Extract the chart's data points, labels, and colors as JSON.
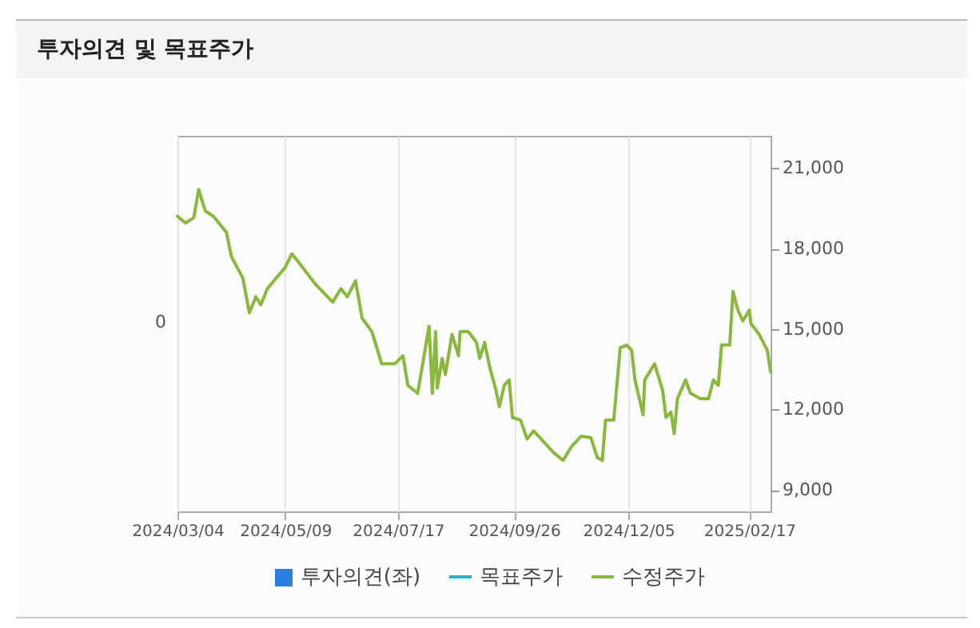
{
  "chart_data": {
    "type": "line",
    "title": "투자의견 및 목표주가",
    "xlim": [
      "2024-03-04",
      "2025-03-02"
    ],
    "xticks": [
      {
        "value": "2024-03-04",
        "label": "2024/03/04"
      },
      {
        "value": "2024-05-09",
        "label": "2024/05/09"
      },
      {
        "value": "2024-07-17",
        "label": "2024/07/17"
      },
      {
        "value": "2024-09-26",
        "label": "2024/09/26"
      },
      {
        "value": "2024-12-05",
        "label": "2024/12/05"
      },
      {
        "value": "2025-02-17",
        "label": "2025/02/17"
      }
    ],
    "annotations": [
      "0"
    ],
    "y2lim": [
      8200,
      22200
    ],
    "y2ticks": [
      {
        "value": 9000,
        "label": "9,000"
      },
      {
        "value": 12000,
        "label": "12,000"
      },
      {
        "value": 15000,
        "label": "15,000"
      },
      {
        "value": 18000,
        "label": "18,000"
      },
      {
        "value": 21000,
        "label": "21,000"
      }
    ],
    "grid": true,
    "legend": "bottom",
    "series": [
      {
        "name": "투자의견(좌)",
        "type": "bar",
        "color": "#2a7de1"
      },
      {
        "name": "목표주가",
        "color": "#1fb5c8"
      },
      {
        "name": "수정주가",
        "axis": "y2",
        "color": "#8ab83d",
        "x": [
          "2024-03-04",
          "2024-03-09",
          "2024-03-14",
          "2024-03-17",
          "2024-03-21",
          "2024-03-26",
          "2024-04-03",
          "2024-04-06",
          "2024-04-13",
          "2024-04-17",
          "2024-04-21",
          "2024-04-24",
          "2024-04-28",
          "2024-05-09",
          "2024-05-13",
          "2024-05-17",
          "2024-05-22",
          "2024-05-27",
          "2024-06-07",
          "2024-06-12",
          "2024-06-16",
          "2024-06-21",
          "2024-06-25",
          "2024-07-01",
          "2024-07-07",
          "2024-07-15",
          "2024-07-20",
          "2024-07-23",
          "2024-07-29",
          "2024-08-05",
          "2024-08-07",
          "2024-08-09",
          "2024-08-10",
          "2024-08-13",
          "2024-08-15",
          "2024-08-19",
          "2024-08-23",
          "2024-08-24",
          "2024-08-29",
          "2024-09-03",
          "2024-09-05",
          "2024-09-08",
          "2024-09-11",
          "2024-09-15",
          "2024-09-17",
          "2024-09-20",
          "2024-09-23",
          "2024-09-25",
          "2024-09-30",
          "2024-10-04",
          "2024-10-08",
          "2024-10-14",
          "2024-10-20",
          "2024-10-26",
          "2024-10-31",
          "2024-11-06",
          "2024-11-12",
          "2024-11-16",
          "2024-11-19",
          "2024-11-21",
          "2024-11-26",
          "2024-11-30",
          "2024-12-04",
          "2024-12-07",
          "2024-12-09",
          "2024-12-14",
          "2024-12-15",
          "2024-12-21",
          "2024-12-24",
          "2024-12-26",
          "2024-12-28",
          "2024-12-31",
          "2025-01-02",
          "2025-01-04",
          "2025-01-09",
          "2025-01-12",
          "2025-01-18",
          "2025-01-23",
          "2025-01-26",
          "2025-01-29",
          "2025-01-31",
          "2025-02-05",
          "2025-02-07",
          "2025-02-10",
          "2025-02-13",
          "2025-02-17",
          "2025-02-18",
          "2025-02-23",
          "2025-02-28",
          "2025-03-02"
        ],
        "values": [
          19200,
          18950,
          19150,
          20200,
          19400,
          19200,
          18600,
          17700,
          16900,
          15600,
          16200,
          15900,
          16500,
          17300,
          17800,
          17500,
          17100,
          16700,
          16000,
          16500,
          16200,
          16800,
          15400,
          14900,
          13700,
          13700,
          14000,
          12900,
          12600,
          15100,
          12600,
          14900,
          12800,
          13900,
          13300,
          14800,
          14000,
          14900,
          14900,
          14500,
          13900,
          14500,
          13600,
          12700,
          12100,
          12900,
          13100,
          11700,
          11600,
          10900,
          11200,
          10800,
          10400,
          10100,
          10600,
          11000,
          10950,
          10200,
          10100,
          11600,
          11600,
          14300,
          14400,
          14200,
          13100,
          11800,
          13100,
          13700,
          13100,
          12700,
          11700,
          11900,
          11100,
          12400,
          13100,
          12600,
          12400,
          12400,
          13100,
          12900,
          14400,
          14400,
          16400,
          15700,
          15300,
          15700,
          15200,
          14800,
          14200,
          13400
        ]
      }
    ]
  }
}
